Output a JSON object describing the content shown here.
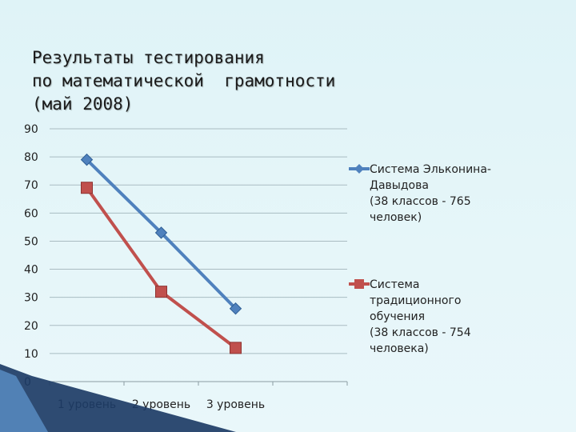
{
  "title_lines": [
    "Результаты тестирования",
    "по математической  грамотности",
    "(май 2008)"
  ],
  "chart_data": {
    "type": "line",
    "categories": [
      "1 уровень",
      "2 уровень",
      "3 уровень"
    ],
    "ylim": [
      0,
      90
    ],
    "yticks": [
      "0",
      "10",
      "20",
      "30",
      "40",
      "50",
      "60",
      "70",
      "80",
      "90"
    ],
    "grid": true,
    "legend_position": "right",
    "series": [
      {
        "name": "Система Эльконина-Давыдова (38 классов - 765 человек)",
        "legend_lines": [
          "Система Эльконина-",
          "Давыдова",
          "(38 классов - 765",
          "человек)"
        ],
        "values": [
          79,
          53,
          26
        ],
        "color": "#4f81bd",
        "marker": "diamond"
      },
      {
        "name": "Система традиционного обучения (38 классов - 754 человека)",
        "legend_lines": [
          "Система",
          "традиционного",
          "обучения",
          "(38 классов - 754",
          "человека)"
        ],
        "values": [
          69,
          32,
          12
        ],
        "color": "#c0504d",
        "marker": "square"
      }
    ]
  }
}
